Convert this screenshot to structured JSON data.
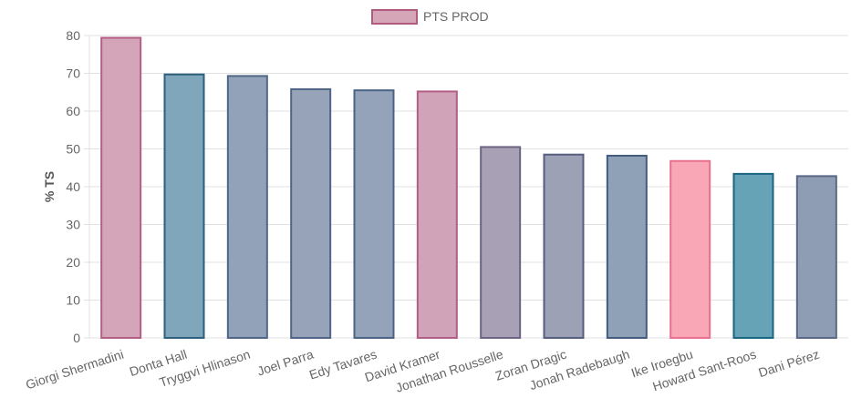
{
  "chart_data": {
    "type": "bar",
    "legend": {
      "label": "PTS PROD",
      "color_fill": "#d5a6b8",
      "color_border": "#b05a7e",
      "placement": "top-center"
    },
    "ylabel": "% TS",
    "xlabel": "",
    "ylim": [
      0,
      80
    ],
    "yticks": [
      0,
      10,
      20,
      30,
      40,
      50,
      60,
      70,
      80
    ],
    "grid": true,
    "categories": [
      "Giorgi Shermadini",
      "Donta Hall",
      "Tryggvi Hlinason",
      "Joel Parra",
      "Edy Tavares",
      "David Kramer",
      "Jonathan Rousselle",
      "Zoran Dragic",
      "Jonah Radebaugh",
      "Ike Iroegbu",
      "Howard Sant-Roos",
      "Dani Pérez"
    ],
    "values": [
      79.4,
      69.7,
      69.3,
      65.8,
      65.5,
      65.2,
      50.5,
      48.5,
      48.2,
      46.8,
      43.4,
      42.8
    ],
    "bar_fill": [
      "#d4a5b9",
      "#7fa6ba",
      "#92a2b9",
      "#96a3b8",
      "#94a3b9",
      "#d0a3b8",
      "#a8a0b4",
      "#9ca1b6",
      "#8ea1b7",
      "#f9a6b7",
      "#67a3b6",
      "#8f9db4"
    ],
    "bar_border": [
      "#b45e86",
      "#2c607c",
      "#4f6687",
      "#4f6487",
      "#4a6385",
      "#b25e86",
      "#6b6583",
      "#565e80",
      "#435c7e",
      "#e9708f",
      "#1a6581",
      "#5a6787"
    ]
  }
}
